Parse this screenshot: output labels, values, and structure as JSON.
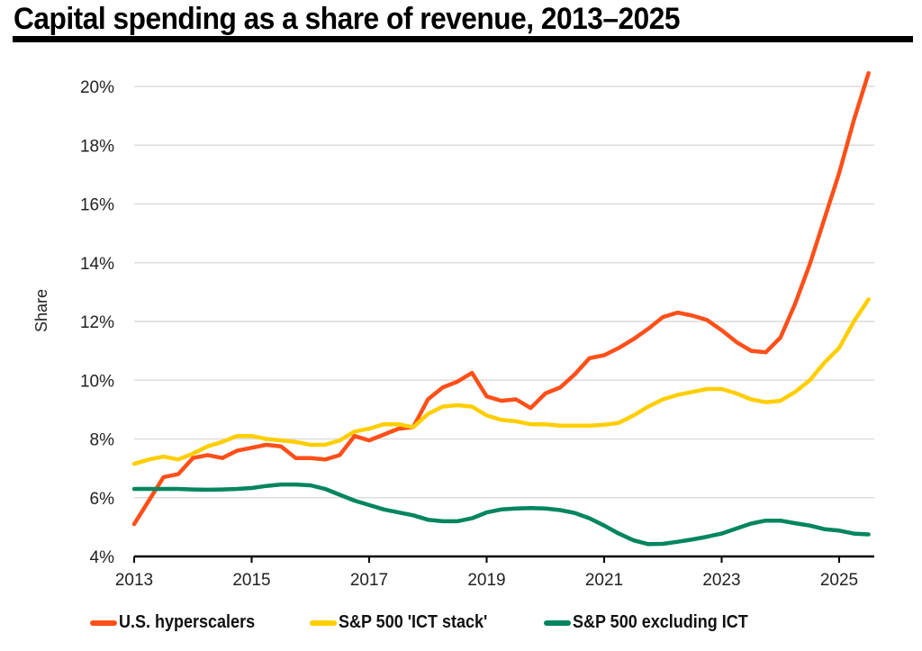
{
  "chart_data": {
    "type": "line",
    "title": "Capital spending as a share of revenue, 2013–2025",
    "xlabel": "",
    "ylabel": "Share",
    "xlim": [
      2013,
      2025.6
    ],
    "ylim": [
      4,
      20
    ],
    "grid": true,
    "legend_position": "bottom",
    "x_ticks": [
      2013,
      2015,
      2017,
      2019,
      2021,
      2023,
      2025
    ],
    "x_tick_labels": [
      "2013",
      "2015",
      "2017",
      "2019",
      "2021",
      "2023",
      "2025"
    ],
    "y_ticks": [
      4,
      6,
      8,
      10,
      12,
      14,
      16,
      18,
      20
    ],
    "y_tick_labels": [
      "4%",
      "6%",
      "8%",
      "10%",
      "12%",
      "14%",
      "16%",
      "18%",
      "20%"
    ],
    "x": [
      2013.0,
      2013.25,
      2013.5,
      2013.75,
      2014.0,
      2014.25,
      2014.5,
      2014.75,
      2015.0,
      2015.25,
      2015.5,
      2015.75,
      2016.0,
      2016.25,
      2016.5,
      2016.75,
      2017.0,
      2017.25,
      2017.5,
      2017.75,
      2018.0,
      2018.25,
      2018.5,
      2018.75,
      2019.0,
      2019.25,
      2019.5,
      2019.75,
      2020.0,
      2020.25,
      2020.5,
      2020.75,
      2021.0,
      2021.25,
      2021.5,
      2021.75,
      2022.0,
      2022.25,
      2022.5,
      2022.75,
      2023.0,
      2023.25,
      2023.5,
      2023.75,
      2024.0,
      2024.25,
      2024.5,
      2024.75,
      2025.0,
      2025.25,
      2025.5
    ],
    "series": [
      {
        "name": "U.S. hyperscalers",
        "color": "#FF4F19",
        "values": [
          5.1,
          5.9,
          6.7,
          6.8,
          7.35,
          7.45,
          7.35,
          7.6,
          7.7,
          7.8,
          7.75,
          7.35,
          7.35,
          7.3,
          7.45,
          8.1,
          7.95,
          8.15,
          8.35,
          8.4,
          9.35,
          9.75,
          9.95,
          10.25,
          9.45,
          9.3,
          9.35,
          9.05,
          9.55,
          9.75,
          10.2,
          10.75,
          10.85,
          11.1,
          11.4,
          11.75,
          12.15,
          12.3,
          12.2,
          12.05,
          11.7,
          11.3,
          11.0,
          10.95,
          11.45,
          12.6,
          13.95,
          15.5,
          17.05,
          18.85,
          20.45
        ]
      },
      {
        "name": "S&P 500 'ICT stack'",
        "color": "#FFCE00",
        "values": [
          7.15,
          7.3,
          7.4,
          7.3,
          7.5,
          7.75,
          7.9,
          8.1,
          8.1,
          8.0,
          7.95,
          7.9,
          7.8,
          7.8,
          7.95,
          8.25,
          8.35,
          8.5,
          8.5,
          8.4,
          8.85,
          9.1,
          9.15,
          9.1,
          8.8,
          8.65,
          8.6,
          8.5,
          8.5,
          8.45,
          8.45,
          8.45,
          8.48,
          8.55,
          8.8,
          9.1,
          9.35,
          9.5,
          9.6,
          9.7,
          9.7,
          9.55,
          9.35,
          9.25,
          9.3,
          9.6,
          10.0,
          10.6,
          11.1,
          12.0,
          12.75
        ]
      },
      {
        "name": "S&P 500 excluding ICT",
        "color": "#00855F",
        "values": [
          6.3,
          6.3,
          6.3,
          6.3,
          6.28,
          6.27,
          6.28,
          6.3,
          6.33,
          6.4,
          6.45,
          6.45,
          6.42,
          6.3,
          6.1,
          5.9,
          5.75,
          5.6,
          5.5,
          5.4,
          5.25,
          5.2,
          5.2,
          5.3,
          5.5,
          5.6,
          5.63,
          5.65,
          5.63,
          5.58,
          5.48,
          5.3,
          5.05,
          4.78,
          4.55,
          4.42,
          4.43,
          4.5,
          4.58,
          4.67,
          4.78,
          4.95,
          5.12,
          5.22,
          5.22,
          5.13,
          5.05,
          4.93,
          4.88,
          4.78,
          4.75
        ]
      }
    ]
  }
}
